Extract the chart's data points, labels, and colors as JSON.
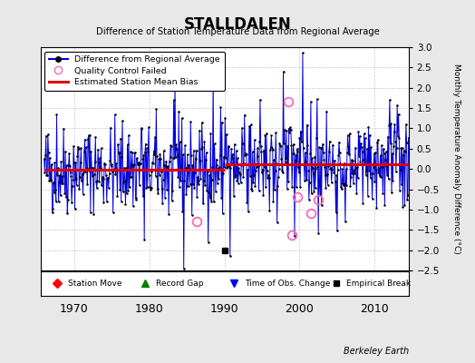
{
  "title": "STALLDALEN",
  "subtitle": "Difference of Station Temperature Data from Regional Average",
  "ylabel": "Monthly Temperature Anomaly Difference (°C)",
  "xlabel_note": "Berkeley Earth",
  "ylim": [
    -2.5,
    3.0
  ],
  "xlim": [
    1965.5,
    2014.5
  ],
  "xticks": [
    1970,
    1980,
    1990,
    2000,
    2010
  ],
  "yticks": [
    -2.5,
    -2,
    -1.5,
    -1,
    -0.5,
    0,
    0.5,
    1,
    1.5,
    2,
    2.5,
    3
  ],
  "line_color": "#0000dd",
  "dot_color": "#000000",
  "bias_color": "#dd0000",
  "bias_early": -0.02,
  "bias_late": 0.12,
  "bias_break": 1990.0,
  "empirical_break_x": 1990.0,
  "empirical_break_y": -2.0,
  "background_color": "#e8e8e8",
  "plot_bg_color": "#ffffff",
  "grid_color": "#bbbbbb",
  "qc_failed_color": "#ff69b4",
  "qc_failed_points": [
    [
      1986.25,
      -1.3
    ],
    [
      1998.5,
      1.65
    ],
    [
      1999.0,
      -1.62
    ],
    [
      1999.75,
      -0.7
    ],
    [
      2001.5,
      -1.1
    ],
    [
      2002.5,
      -0.75
    ]
  ],
  "seed": 17
}
